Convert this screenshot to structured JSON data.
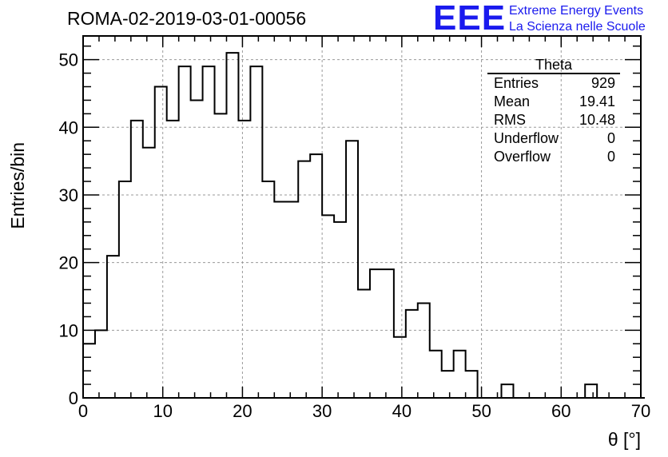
{
  "header": {
    "run_id": "ROMA-02-2019-03-01-00056"
  },
  "logo": {
    "mark": "EEE",
    "line1": "Extreme Energy Events",
    "line2": "La Scienza nelle Scuole",
    "color": "#1a1aee"
  },
  "stats_box": {
    "title": "Theta",
    "rows": [
      {
        "key": "Entries",
        "value": "929"
      },
      {
        "key": "Mean",
        "value": "19.41"
      },
      {
        "key": "RMS",
        "value": "10.48"
      },
      {
        "key": "Underflow",
        "value": "0"
      },
      {
        "key": "Overflow",
        "value": "0"
      }
    ]
  },
  "chart_data": {
    "type": "histogram",
    "title": "ROMA-02-2019-03-01-00056",
    "xlabel": "θ [°]",
    "ylabel": "Entries/bin",
    "xlim": [
      0,
      70
    ],
    "ylim": [
      0,
      53.5
    ],
    "bin_width": 1.5,
    "x_ticks": [
      0,
      10,
      20,
      30,
      40,
      50,
      60,
      70
    ],
    "y_ticks": [
      0,
      10,
      20,
      30,
      40,
      50
    ],
    "grid": true,
    "bin_edges_start": 0,
    "values": [
      8,
      10,
      21,
      32,
      41,
      37,
      46,
      41,
      49,
      44,
      49,
      42,
      51,
      41,
      49,
      32,
      29,
      29,
      35,
      36,
      27,
      26,
      38,
      16,
      19,
      19,
      9,
      13,
      14,
      7,
      4,
      7,
      4,
      0,
      0,
      2,
      0,
      0,
      0,
      0,
      0,
      0,
      2,
      0,
      0,
      0,
      0
    ]
  }
}
